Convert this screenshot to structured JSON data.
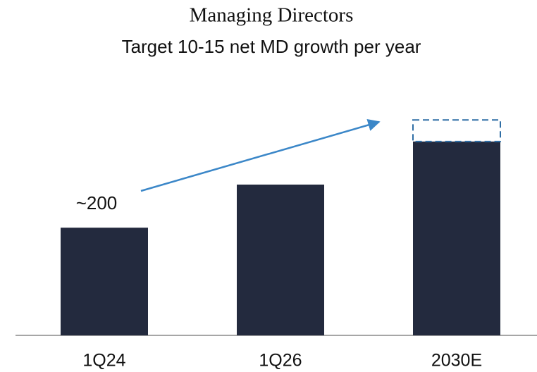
{
  "chart_data": {
    "type": "bar",
    "title": "Managing Directors",
    "subtitle": "Target 10-15 net MD growth per year",
    "categories": [
      "1Q24",
      "1Q26",
      "2030E"
    ],
    "values": [
      200,
      280,
      360
    ],
    "value_labels": [
      "~200",
      null,
      null
    ],
    "target_range": [
      null,
      null,
      40
    ],
    "color": "#232a3e",
    "range_color": "#2f6ea5",
    "arrow_color": "#3b87c8",
    "ylim": [
      0,
      420
    ]
  }
}
